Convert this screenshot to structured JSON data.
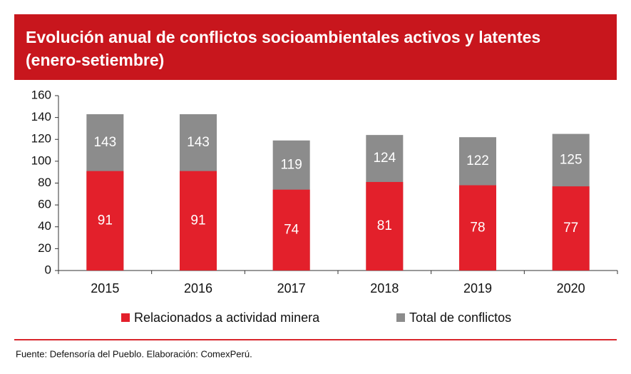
{
  "chart_data": {
    "type": "bar",
    "title": "Evolución anual de conflictos socioambientales activos y latentes",
    "subtitle": "(enero-setiembre)",
    "categories": [
      "2015",
      "2016",
      "2017",
      "2018",
      "2019",
      "2020"
    ],
    "series": [
      {
        "name": "Total de conflictos",
        "color": "#8c8c8c",
        "values": [
          143,
          143,
          119,
          124,
          122,
          125
        ]
      },
      {
        "name": "Relacionados a actividad minera",
        "color": "#e3202b",
        "values": [
          91,
          91,
          74,
          81,
          78,
          77
        ]
      }
    ],
    "legend_order": [
      "Relacionados a actividad minera",
      "Total de conflictos"
    ],
    "ylim": [
      0,
      160
    ],
    "yticks": [
      0,
      20,
      40,
      60,
      80,
      100,
      120,
      140,
      160
    ],
    "grid": false,
    "source": "Fuente: Defensoría del Pueblo. Elaboración: ComexPerú."
  }
}
